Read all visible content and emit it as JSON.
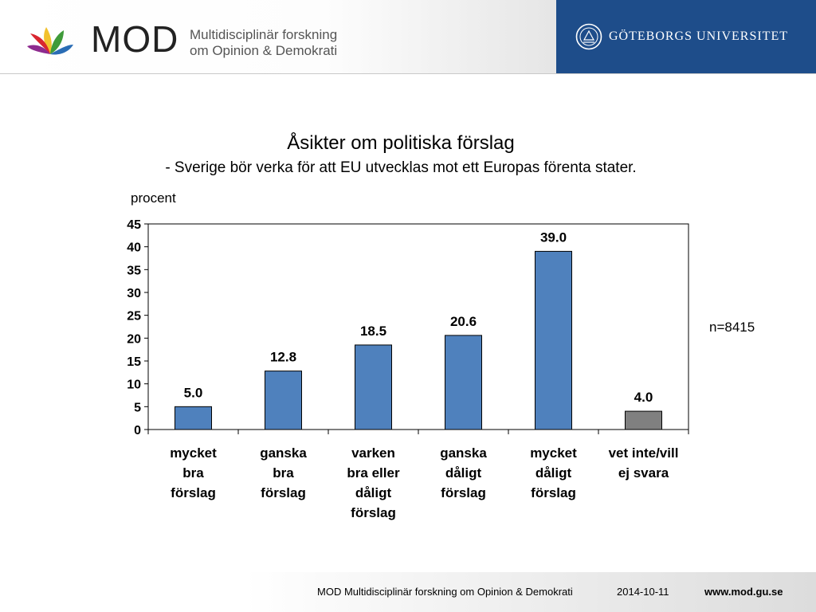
{
  "header": {
    "logo_word": "MOD",
    "logo_tagline_1": "Multidisciplinär forskning",
    "logo_tagline_2": "om Opinion & Demokrati",
    "university": "GÖTEBORGS UNIVERSITET",
    "colors": {
      "university_panel": "#1e4d8a"
    }
  },
  "chart_data": {
    "type": "bar",
    "title": "Åsikter om politiska förslag",
    "subtitle": "- Sverige bör verka för att EU utvecklas mot ett Europas förenta stater.",
    "ylabel": "procent",
    "xlabel": "",
    "ylim": [
      0,
      45
    ],
    "yticks": [
      "0",
      "5",
      "10",
      "15",
      "20",
      "25",
      "30",
      "35",
      "40",
      "45"
    ],
    "categories": [
      [
        "mycket",
        "bra",
        "förslag"
      ],
      [
        "ganska",
        "bra",
        "förslag"
      ],
      [
        "varken",
        "bra eller",
        "dåligt",
        "förslag"
      ],
      [
        "ganska",
        "dåligt",
        "förslag"
      ],
      [
        "mycket",
        "dåligt",
        "förslag"
      ],
      [
        "vet inte/vill",
        "ej svara"
      ]
    ],
    "values": [
      5.0,
      12.8,
      18.5,
      20.6,
      39.0,
      4.0
    ],
    "value_labels": [
      "5.0",
      "12.8",
      "18.5",
      "20.6",
      "39.0",
      "4.0"
    ],
    "bar_colors": [
      "#4f81bd",
      "#4f81bd",
      "#4f81bd",
      "#4f81bd",
      "#4f81bd",
      "#808080"
    ],
    "grid": false,
    "legend": "none",
    "annotation": "n=8415"
  },
  "footer": {
    "org": "MOD Multidisciplinär forskning om Opinion & Demokrati",
    "date": "2014-10-11",
    "url": "www.mod.gu.se"
  }
}
